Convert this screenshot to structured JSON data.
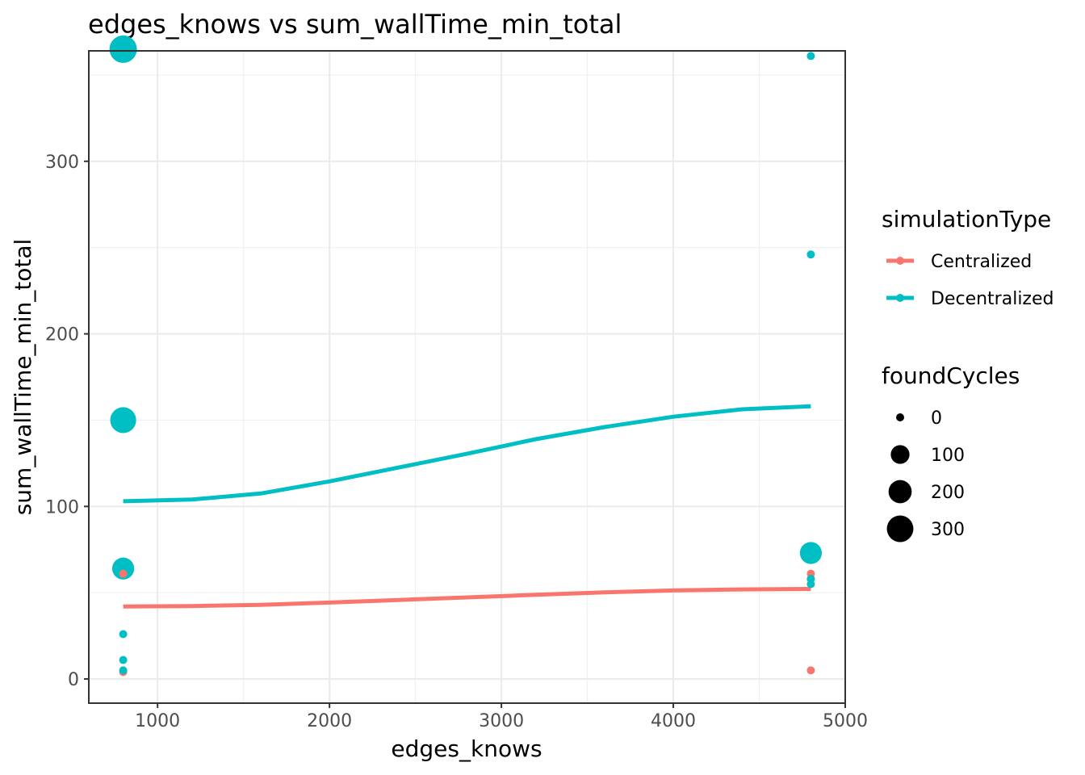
{
  "chart_data": {
    "type": "scatter",
    "title": "edges_knows  vs  sum_wallTime_min_total",
    "xlabel": "edges_knows",
    "ylabel": "sum_wallTime_min_total",
    "xlim": [
      600,
      5000
    ],
    "ylim": [
      -14,
      364
    ],
    "x_ticks": [
      1000,
      2000,
      3000,
      4000,
      5000
    ],
    "y_ticks": [
      0,
      100,
      200,
      300
    ],
    "x_tick_labels": [
      "1000",
      "2000",
      "3000",
      "4000",
      "5000"
    ],
    "y_tick_labels": [
      "0",
      "100",
      "200",
      "300"
    ],
    "grid": true,
    "legend_position": "right",
    "color_legend": {
      "title": "simulationType",
      "entries": [
        {
          "label": "Centralized",
          "color": "#F8766D"
        },
        {
          "label": "Decentralized",
          "color": "#00BFC4"
        }
      ]
    },
    "size_legend": {
      "title": "foundCycles",
      "entries": [
        {
          "label": "0",
          "value": 0
        },
        {
          "label": "100",
          "value": 100
        },
        {
          "label": "200",
          "value": 200
        },
        {
          "label": "300",
          "value": 300
        }
      ]
    },
    "series": [
      {
        "group": "Centralized",
        "color": "#F8766D",
        "points": [
          {
            "x": 800,
            "y": 4,
            "size": 0
          },
          {
            "x": 800,
            "y": 61,
            "size": 0
          },
          {
            "x": 4800,
            "y": 5,
            "size": 0
          },
          {
            "x": 4800,
            "y": 61,
            "size": 0
          },
          {
            "x": 4800,
            "y": 58,
            "size": 0
          }
        ],
        "trend": [
          {
            "x": 800,
            "y": 42
          },
          {
            "x": 1200,
            "y": 42.3
          },
          {
            "x": 1600,
            "y": 43
          },
          {
            "x": 2000,
            "y": 44.3
          },
          {
            "x": 2400,
            "y": 45.8
          },
          {
            "x": 2800,
            "y": 47.3
          },
          {
            "x": 3200,
            "y": 48.8
          },
          {
            "x": 3600,
            "y": 50.2
          },
          {
            "x": 4000,
            "y": 51.3
          },
          {
            "x": 4400,
            "y": 51.9
          },
          {
            "x": 4800,
            "y": 52.2
          }
        ]
      },
      {
        "group": "Decentralized",
        "color": "#00BFC4",
        "points": [
          {
            "x": 800,
            "y": 365,
            "size": 330
          },
          {
            "x": 800,
            "y": 150,
            "size": 280
          },
          {
            "x": 800,
            "y": 64,
            "size": 170
          },
          {
            "x": 800,
            "y": 26,
            "size": 0
          },
          {
            "x": 800,
            "y": 11,
            "size": 0
          },
          {
            "x": 800,
            "y": 5,
            "size": 0
          },
          {
            "x": 4800,
            "y": 361,
            "size": 0
          },
          {
            "x": 4800,
            "y": 246,
            "size": 0
          },
          {
            "x": 4800,
            "y": 73,
            "size": 170
          },
          {
            "x": 4800,
            "y": 58,
            "size": 0
          },
          {
            "x": 4800,
            "y": 55,
            "size": 0
          }
        ],
        "trend": [
          {
            "x": 800,
            "y": 103
          },
          {
            "x": 1200,
            "y": 104
          },
          {
            "x": 1600,
            "y": 107.5
          },
          {
            "x": 2000,
            "y": 114.5
          },
          {
            "x": 2400,
            "y": 122.5
          },
          {
            "x": 2800,
            "y": 130.5
          },
          {
            "x": 3200,
            "y": 139
          },
          {
            "x": 3600,
            "y": 146
          },
          {
            "x": 4000,
            "y": 152
          },
          {
            "x": 4400,
            "y": 156.3
          },
          {
            "x": 4800,
            "y": 158
          }
        ]
      }
    ]
  }
}
